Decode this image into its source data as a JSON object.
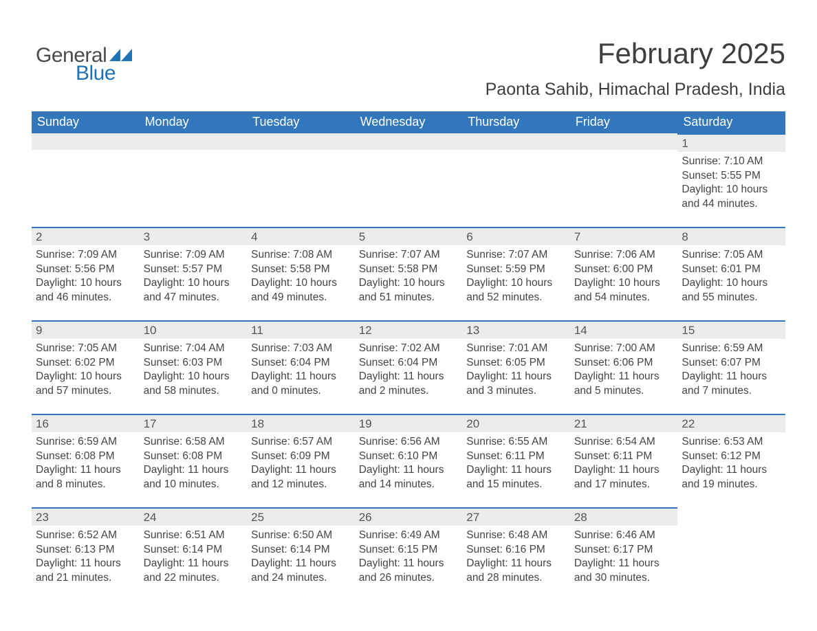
{
  "brand": {
    "word_general": "General",
    "word_blue": "Blue",
    "general_color": "#4a4a4a",
    "blue_color": "#1f72b5",
    "triangle_color": "#1f72b5"
  },
  "header": {
    "month_title": "February 2025",
    "location": "Paonta Sahib, Himachal Pradesh, India"
  },
  "style": {
    "header_bg": "#3277bc",
    "header_text": "#ffffff",
    "daybar_bg": "#ececec",
    "daybar_border": "#3277bc",
    "body_text": "#444444",
    "page_bg": "#ffffff",
    "header_font_size": 18,
    "daynum_font_size": 17,
    "body_font_size": 15.5
  },
  "weekday_labels": [
    "Sunday",
    "Monday",
    "Tuesday",
    "Wednesday",
    "Thursday",
    "Friday",
    "Saturday"
  ],
  "weeks": [
    [
      null,
      null,
      null,
      null,
      null,
      null,
      {
        "n": "1",
        "sunrise": "7:10 AM",
        "sunset": "5:55 PM",
        "day_h": 10,
        "day_m": 44
      }
    ],
    [
      {
        "n": "2",
        "sunrise": "7:09 AM",
        "sunset": "5:56 PM",
        "day_h": 10,
        "day_m": 46
      },
      {
        "n": "3",
        "sunrise": "7:09 AM",
        "sunset": "5:57 PM",
        "day_h": 10,
        "day_m": 47
      },
      {
        "n": "4",
        "sunrise": "7:08 AM",
        "sunset": "5:58 PM",
        "day_h": 10,
        "day_m": 49
      },
      {
        "n": "5",
        "sunrise": "7:07 AM",
        "sunset": "5:58 PM",
        "day_h": 10,
        "day_m": 51
      },
      {
        "n": "6",
        "sunrise": "7:07 AM",
        "sunset": "5:59 PM",
        "day_h": 10,
        "day_m": 52
      },
      {
        "n": "7",
        "sunrise": "7:06 AM",
        "sunset": "6:00 PM",
        "day_h": 10,
        "day_m": 54
      },
      {
        "n": "8",
        "sunrise": "7:05 AM",
        "sunset": "6:01 PM",
        "day_h": 10,
        "day_m": 55
      }
    ],
    [
      {
        "n": "9",
        "sunrise": "7:05 AM",
        "sunset": "6:02 PM",
        "day_h": 10,
        "day_m": 57
      },
      {
        "n": "10",
        "sunrise": "7:04 AM",
        "sunset": "6:03 PM",
        "day_h": 10,
        "day_m": 58
      },
      {
        "n": "11",
        "sunrise": "7:03 AM",
        "sunset": "6:04 PM",
        "day_h": 11,
        "day_m": 0
      },
      {
        "n": "12",
        "sunrise": "7:02 AM",
        "sunset": "6:04 PM",
        "day_h": 11,
        "day_m": 2
      },
      {
        "n": "13",
        "sunrise": "7:01 AM",
        "sunset": "6:05 PM",
        "day_h": 11,
        "day_m": 3
      },
      {
        "n": "14",
        "sunrise": "7:00 AM",
        "sunset": "6:06 PM",
        "day_h": 11,
        "day_m": 5
      },
      {
        "n": "15",
        "sunrise": "6:59 AM",
        "sunset": "6:07 PM",
        "day_h": 11,
        "day_m": 7
      }
    ],
    [
      {
        "n": "16",
        "sunrise": "6:59 AM",
        "sunset": "6:08 PM",
        "day_h": 11,
        "day_m": 8
      },
      {
        "n": "17",
        "sunrise": "6:58 AM",
        "sunset": "6:08 PM",
        "day_h": 11,
        "day_m": 10
      },
      {
        "n": "18",
        "sunrise": "6:57 AM",
        "sunset": "6:09 PM",
        "day_h": 11,
        "day_m": 12
      },
      {
        "n": "19",
        "sunrise": "6:56 AM",
        "sunset": "6:10 PM",
        "day_h": 11,
        "day_m": 14
      },
      {
        "n": "20",
        "sunrise": "6:55 AM",
        "sunset": "6:11 PM",
        "day_h": 11,
        "day_m": 15
      },
      {
        "n": "21",
        "sunrise": "6:54 AM",
        "sunset": "6:11 PM",
        "day_h": 11,
        "day_m": 17
      },
      {
        "n": "22",
        "sunrise": "6:53 AM",
        "sunset": "6:12 PM",
        "day_h": 11,
        "day_m": 19
      }
    ],
    [
      {
        "n": "23",
        "sunrise": "6:52 AM",
        "sunset": "6:13 PM",
        "day_h": 11,
        "day_m": 21
      },
      {
        "n": "24",
        "sunrise": "6:51 AM",
        "sunset": "6:14 PM",
        "day_h": 11,
        "day_m": 22
      },
      {
        "n": "25",
        "sunrise": "6:50 AM",
        "sunset": "6:14 PM",
        "day_h": 11,
        "day_m": 24
      },
      {
        "n": "26",
        "sunrise": "6:49 AM",
        "sunset": "6:15 PM",
        "day_h": 11,
        "day_m": 26
      },
      {
        "n": "27",
        "sunrise": "6:48 AM",
        "sunset": "6:16 PM",
        "day_h": 11,
        "day_m": 28
      },
      {
        "n": "28",
        "sunrise": "6:46 AM",
        "sunset": "6:17 PM",
        "day_h": 11,
        "day_m": 30
      },
      null
    ]
  ],
  "labels": {
    "sunrise_prefix": "Sunrise: ",
    "sunset_prefix": "Sunset: ",
    "daylight_prefix": "Daylight: ",
    "hours_word": " hours",
    "and_word": "and ",
    "minutes_word": " minutes."
  }
}
